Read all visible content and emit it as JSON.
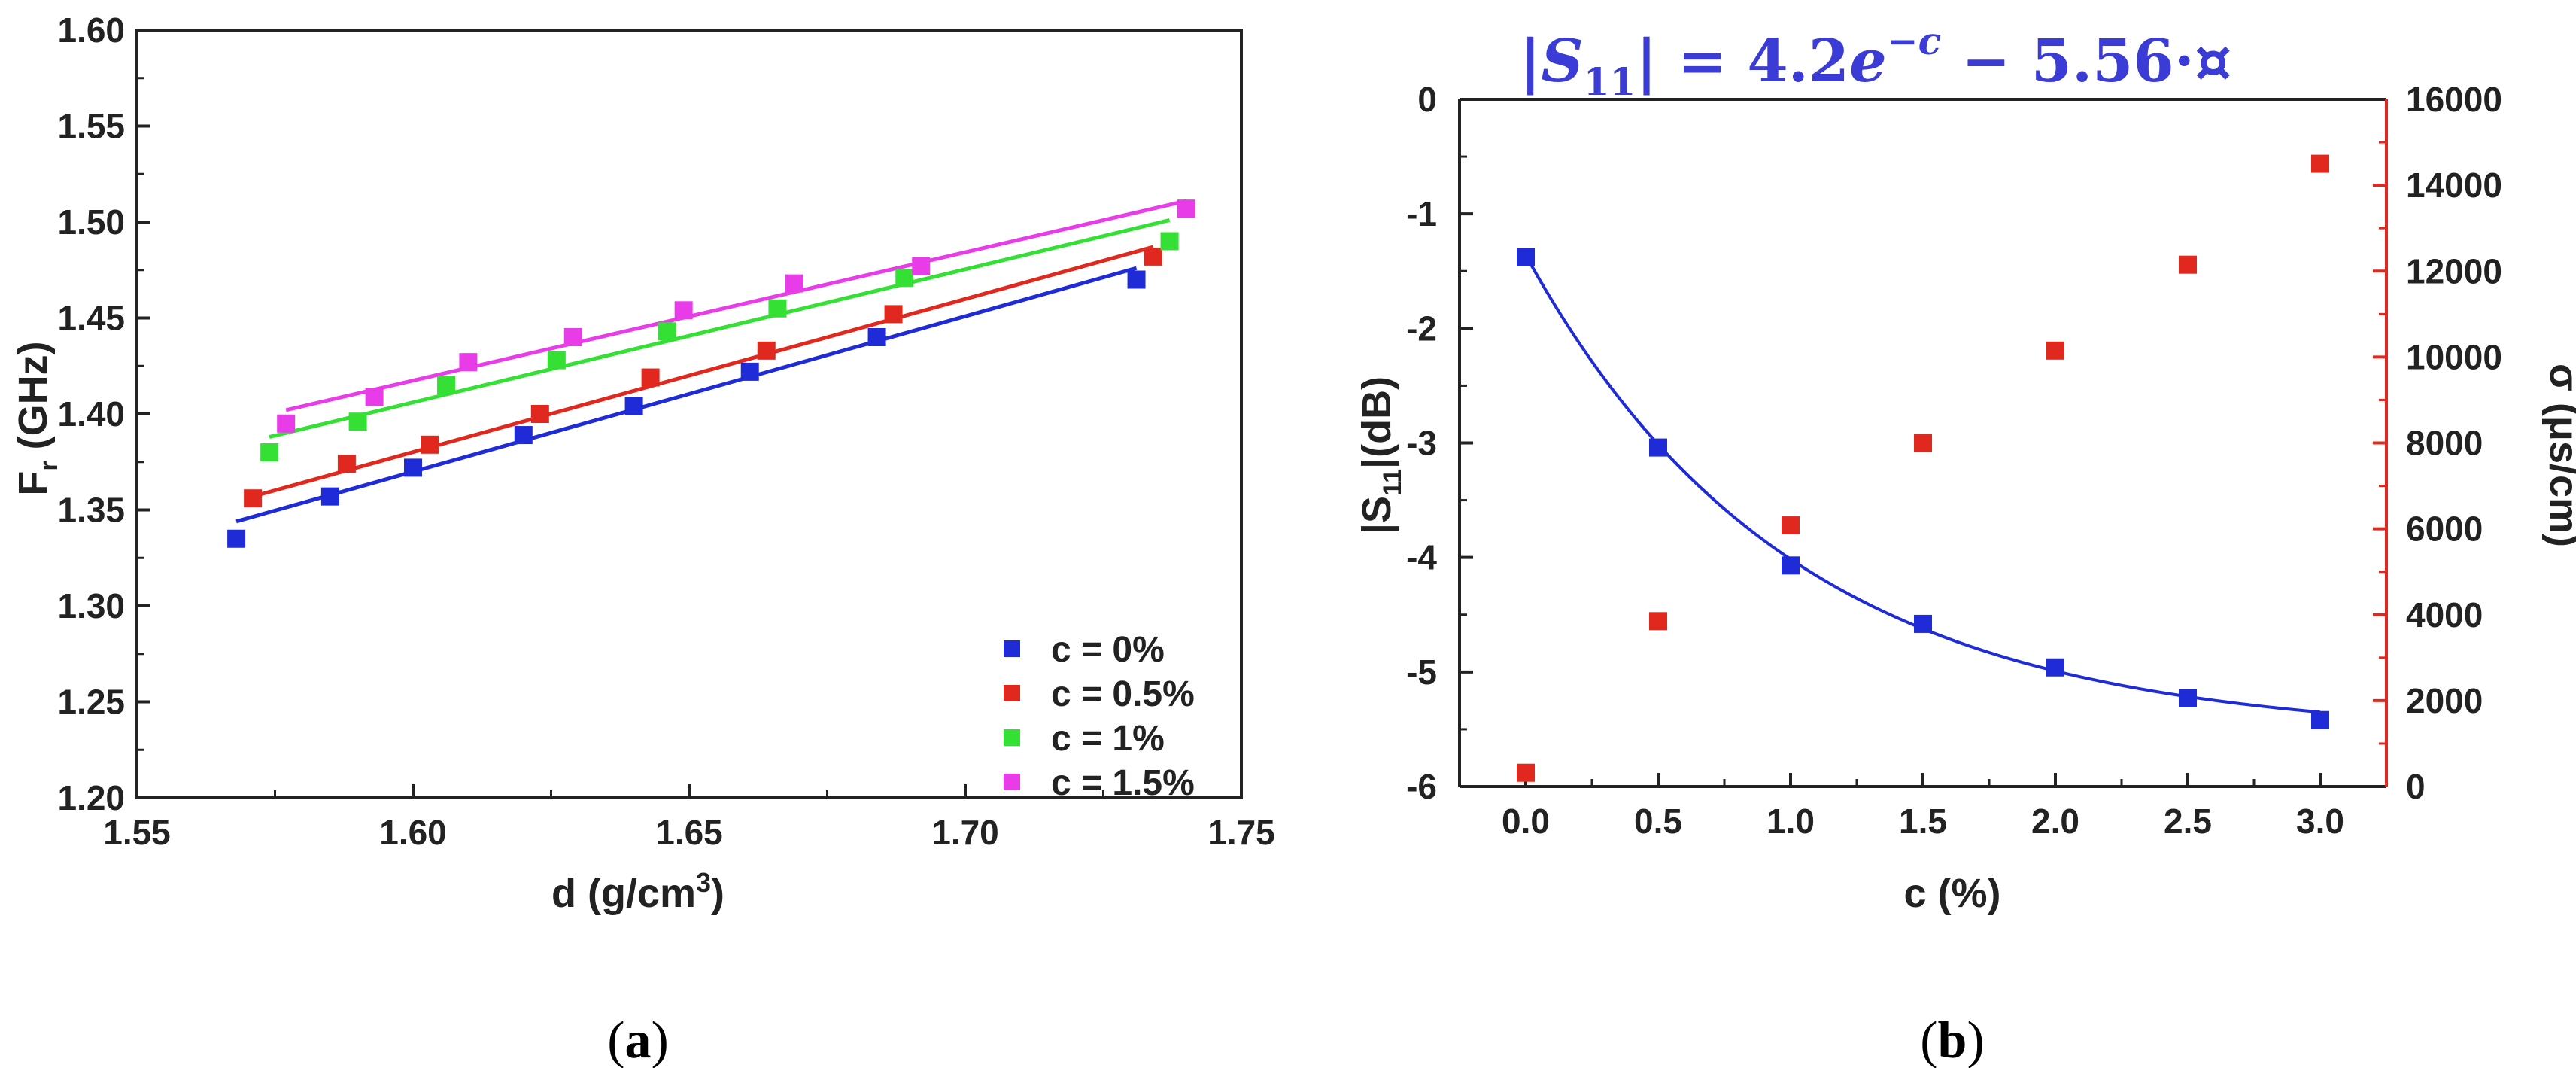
{
  "colors": {
    "blue": "#1f2bd6",
    "red": "#e0281e",
    "green": "#33e033",
    "magenta": "#e83ce8",
    "axis": "#222222",
    "formula": "#3b3bd6",
    "right_axis": "#e0281e"
  },
  "chart_data": [
    {
      "type": "scatter",
      "panel_label": "(a)",
      "xlabel": "d (g/cm³)",
      "ylabel": "Fr (GHz)",
      "xlim": [
        1.55,
        1.75
      ],
      "ylim": [
        1.2,
        1.6
      ],
      "xticks": [
        "1.55",
        "1.60",
        "1.65",
        "1.70",
        "1.75"
      ],
      "yticks": [
        "1.20",
        "1.25",
        "1.30",
        "1.35",
        "1.40",
        "1.45",
        "1.50",
        "1.55",
        "1.60"
      ],
      "legend_position": "bottom-right",
      "series": [
        {
          "name": "c = 0%",
          "color": "blue",
          "x": [
            1.568,
            1.585,
            1.6,
            1.62,
            1.64,
            1.661,
            1.684,
            1.731
          ],
          "y": [
            1.335,
            1.357,
            1.372,
            1.389,
            1.404,
            1.422,
            1.44,
            1.47
          ],
          "fit": {
            "x": [
              1.568,
              1.731
            ],
            "y": [
              1.344,
              1.476
            ]
          }
        },
        {
          "name": "c = 0.5%",
          "color": "red",
          "x": [
            1.571,
            1.588,
            1.603,
            1.623,
            1.643,
            1.664,
            1.687,
            1.734
          ],
          "y": [
            1.356,
            1.374,
            1.384,
            1.4,
            1.419,
            1.433,
            1.452,
            1.482
          ],
          "fit": {
            "x": [
              1.571,
              1.734
            ],
            "y": [
              1.357,
              1.487
            ]
          }
        },
        {
          "name": "c = 1%",
          "color": "green",
          "x": [
            1.574,
            1.59,
            1.606,
            1.626,
            1.646,
            1.666,
            1.689,
            1.737
          ],
          "y": [
            1.38,
            1.396,
            1.415,
            1.428,
            1.443,
            1.455,
            1.471,
            1.49
          ],
          "fit": {
            "x": [
              1.574,
              1.737
            ],
            "y": [
              1.388,
              1.501
            ]
          }
        },
        {
          "name": "c = 1.5%",
          "color": "magenta",
          "x": [
            1.577,
            1.593,
            1.61,
            1.629,
            1.649,
            1.669,
            1.692,
            1.74
          ],
          "y": [
            1.395,
            1.409,
            1.427,
            1.44,
            1.454,
            1.468,
            1.477,
            1.507
          ],
          "fit": {
            "x": [
              1.577,
              1.74
            ],
            "y": [
              1.402,
              1.511
            ]
          }
        }
      ]
    },
    {
      "type": "scatter",
      "panel_label": "(b)",
      "title": "|S11| = 4.2e^(−c) − 5.56·¤",
      "formula_parts": {
        "bar_open": "|",
        "S": "S",
        "sub": "11",
        "bar_close": "|",
        "eq": " = 4.2",
        "e": "e",
        "exp": "−c",
        "rest": " − 5.56·¤"
      },
      "xlabel": "c (%)",
      "ylabel_left": "|S11|(dB)",
      "ylabel_right": "σ (μs/cm)",
      "xlim": [
        -0.25,
        3.25
      ],
      "ylim_left": [
        -6,
        0
      ],
      "ylim_right": [
        0,
        16000
      ],
      "xticks": [
        "0.0",
        "0.5",
        "1.0",
        "1.5",
        "2.0",
        "2.5",
        "3.0"
      ],
      "yticks_left": [
        "-6",
        "-5",
        "-4",
        "-3",
        "-2",
        "-1",
        "0"
      ],
      "yticks_right": [
        "0",
        "2000",
        "4000",
        "6000",
        "8000",
        "10000",
        "12000",
        "14000",
        "16000"
      ],
      "series": [
        {
          "name": "|S11|",
          "color": "blue",
          "axis": "left",
          "x": [
            0.0,
            0.5,
            1.0,
            1.5,
            2.0,
            2.5,
            3.0
          ],
          "y": [
            -1.38,
            -3.04,
            -4.07,
            -4.58,
            -4.96,
            -5.23,
            -5.42
          ],
          "fit": {
            "a": 4.2,
            "c0": -5.56
          }
        },
        {
          "name": "σ",
          "color": "red",
          "axis": "right",
          "x": [
            0.0,
            0.5,
            1.0,
            1.5,
            2.0,
            2.5,
            3.0
          ],
          "y": [
            320,
            3850,
            6080,
            8000,
            10150,
            12150,
            14500
          ]
        }
      ]
    }
  ]
}
